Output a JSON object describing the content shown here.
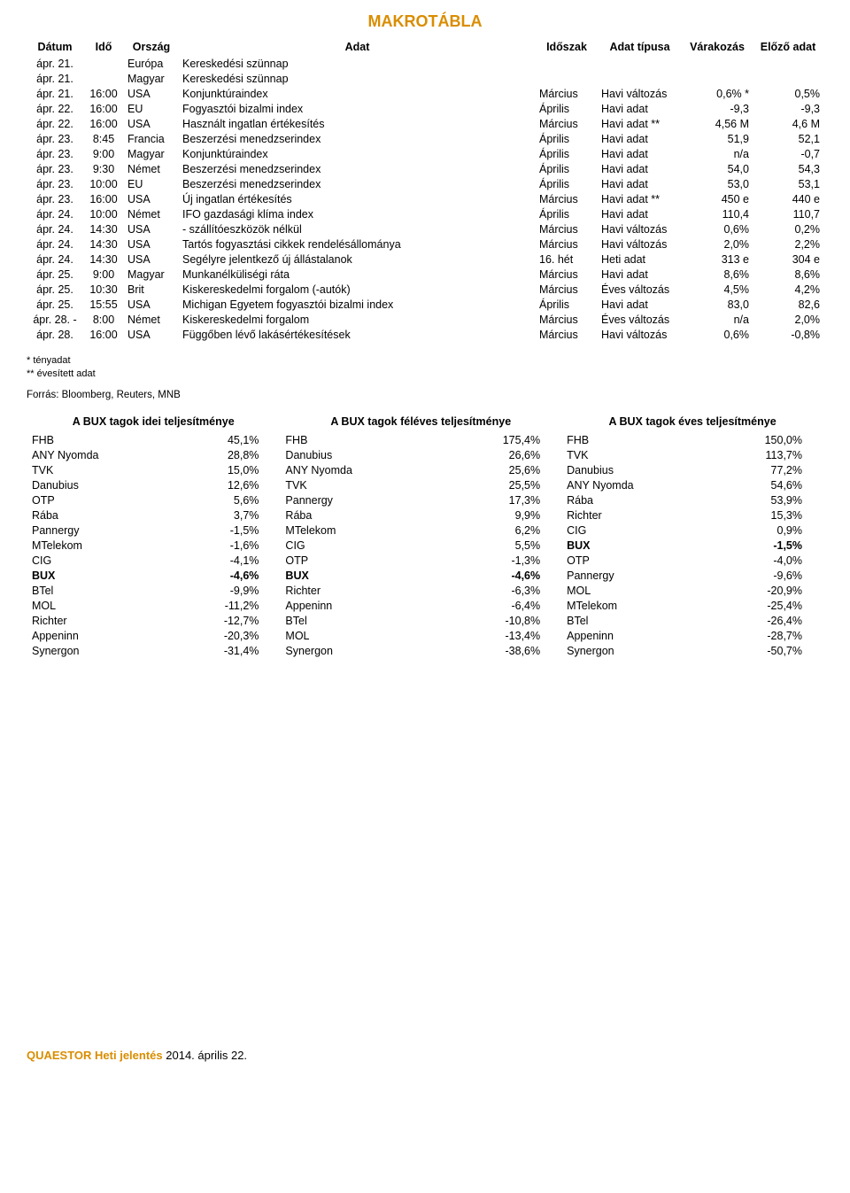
{
  "title": "MAKROTÁBLA",
  "title_color": "#d98d00",
  "columns": [
    "Dátum",
    "Idő",
    "Ország",
    "Adat",
    "Időszak",
    "Adat típusa",
    "Várakozás",
    "Előző adat"
  ],
  "rows": [
    {
      "datum": "ápr. 21.",
      "ido": "",
      "orszag": "Európa",
      "adat": "Kereskedési szünnap",
      "idoszak": "",
      "tipus": "",
      "var": "",
      "elozo": ""
    },
    {
      "datum": "ápr. 21.",
      "ido": "",
      "orszag": "Magyar",
      "adat": "Kereskedési szünnap",
      "idoszak": "",
      "tipus": "",
      "var": "",
      "elozo": ""
    },
    {
      "datum": "ápr. 21.",
      "ido": "16:00",
      "orszag": "USA",
      "adat": "Konjunktúraindex",
      "idoszak": "Március",
      "tipus": "Havi változás",
      "var": "0,6% *",
      "elozo": "0,5%"
    },
    {
      "datum": "ápr. 22.",
      "ido": "16:00",
      "orszag": "EU",
      "adat": "Fogyasztói bizalmi index",
      "idoszak": "Április",
      "tipus": "Havi adat",
      "var": "-9,3",
      "elozo": "-9,3"
    },
    {
      "datum": "ápr. 22.",
      "ido": "16:00",
      "orszag": "USA",
      "adat": "Használt ingatlan értékesítés",
      "idoszak": "Március",
      "tipus": "Havi adat **",
      "var": "4,56 M",
      "elozo": "4,6 M"
    },
    {
      "datum": "ápr. 23.",
      "ido": "8:45",
      "orszag": "Francia",
      "adat": "Beszerzési menedzserindex",
      "idoszak": "Április",
      "tipus": "Havi adat",
      "var": "51,9",
      "elozo": "52,1"
    },
    {
      "datum": "ápr. 23.",
      "ido": "9:00",
      "orszag": "Magyar",
      "adat": "Konjunktúraindex",
      "idoszak": "Április",
      "tipus": "Havi adat",
      "var": "n/a",
      "elozo": "-0,7"
    },
    {
      "datum": "ápr. 23.",
      "ido": "9:30",
      "orszag": "Német",
      "adat": "Beszerzési menedzserindex",
      "idoszak": "Április",
      "tipus": "Havi adat",
      "var": "54,0",
      "elozo": "54,3"
    },
    {
      "datum": "ápr. 23.",
      "ido": "10:00",
      "orszag": "EU",
      "adat": "Beszerzési menedzserindex",
      "idoszak": "Április",
      "tipus": "Havi adat",
      "var": "53,0",
      "elozo": "53,1"
    },
    {
      "datum": "ápr. 23.",
      "ido": "16:00",
      "orszag": "USA",
      "adat": "Új ingatlan értékesítés",
      "idoszak": "Március",
      "tipus": "Havi adat **",
      "var": "450 e",
      "elozo": "440 e"
    },
    {
      "datum": "ápr. 24.",
      "ido": "10:00",
      "orszag": "Német",
      "adat": "IFO gazdasági klíma index",
      "idoszak": "Április",
      "tipus": "Havi adat",
      "var": "110,4",
      "elozo": "110,7"
    },
    {
      "datum": "ápr. 24.",
      "ido": "14:30",
      "orszag": "USA",
      "adat": " - szállítóeszközök nélkül",
      "idoszak": "Március",
      "tipus": "Havi változás",
      "var": "0,6%",
      "elozo": "0,2%"
    },
    {
      "datum": "ápr. 24.",
      "ido": "14:30",
      "orszag": "USA",
      "adat": "Tartós fogyasztási cikkek rendelésállománya",
      "idoszak": "Március",
      "tipus": "Havi változás",
      "var": "2,0%",
      "elozo": "2,2%"
    },
    {
      "datum": "ápr. 24.",
      "ido": "14:30",
      "orszag": "USA",
      "adat": "Segélyre jelentkező új állástalanok",
      "idoszak": "16. hét",
      "tipus": "Heti adat",
      "var": "313 e",
      "elozo": "304 e"
    },
    {
      "datum": "ápr. 25.",
      "ido": "9:00",
      "orszag": "Magyar",
      "adat": "Munkanélküliségi ráta",
      "idoszak": "Március",
      "tipus": "Havi adat",
      "var": "8,6%",
      "elozo": "8,6%"
    },
    {
      "datum": "ápr. 25.",
      "ido": "10:30",
      "orszag": "Brit",
      "adat": "Kiskereskedelmi forgalom (-autók)",
      "idoszak": "Március",
      "tipus": "Éves változás",
      "var": "4,5%",
      "elozo": "4,2%"
    },
    {
      "datum": "ápr. 25.",
      "ido": "15:55",
      "orszag": "USA",
      "adat": "Michigan Egyetem fogyasztói bizalmi index",
      "idoszak": "Április",
      "tipus": "Havi adat",
      "var": "83,0",
      "elozo": "82,6"
    },
    {
      "datum": "ápr. 28. -",
      "ido": "8:00",
      "orszag": "Német",
      "adat": "Kiskereskedelmi forgalom",
      "idoszak": "Március",
      "tipus": "Éves változás",
      "var": "n/a",
      "elozo": "2,0%"
    },
    {
      "datum": "ápr. 28.",
      "ido": "16:00",
      "orszag": "USA",
      "adat": "Függőben lévő lakásértékesítések",
      "idoszak": "Március",
      "tipus": "Havi változás",
      "var": "0,6%",
      "elozo": "-0,8%"
    }
  ],
  "note1": "* tényadat",
  "note2": "** évesített adat",
  "source": "Forrás: Bloomberg, Reuters, MNB",
  "perf_headers": [
    "A BUX tagok idei teljesítménye",
    "A BUX tagok féléves teljesítménye",
    "A BUX tagok éves teljesítménye"
  ],
  "perf": [
    [
      {
        "name": "FHB",
        "val": "45,1%"
      },
      {
        "name": "ANY Nyomda",
        "val": "28,8%"
      },
      {
        "name": "TVK",
        "val": "15,0%"
      },
      {
        "name": "Danubius",
        "val": "12,6%"
      },
      {
        "name": "OTP",
        "val": "5,6%"
      },
      {
        "name": "Rába",
        "val": "3,7%"
      },
      {
        "name": "Pannergy",
        "val": "-1,5%"
      },
      {
        "name": "MTelekom",
        "val": "-1,6%"
      },
      {
        "name": "CIG",
        "val": "-4,1%"
      },
      {
        "name": "BUX",
        "val": "-4,6%",
        "bold": true
      },
      {
        "name": "BTel",
        "val": "-9,9%"
      },
      {
        "name": "MOL",
        "val": "-11,2%"
      },
      {
        "name": "Richter",
        "val": "-12,7%"
      },
      {
        "name": "Appeninn",
        "val": "-20,3%"
      },
      {
        "name": "Synergon",
        "val": "-31,4%"
      }
    ],
    [
      {
        "name": "FHB",
        "val": "175,4%"
      },
      {
        "name": "Danubius",
        "val": "26,6%"
      },
      {
        "name": "ANY Nyomda",
        "val": "25,6%"
      },
      {
        "name": "TVK",
        "val": "25,5%"
      },
      {
        "name": "Pannergy",
        "val": "17,3%"
      },
      {
        "name": "Rába",
        "val": "9,9%"
      },
      {
        "name": "MTelekom",
        "val": "6,2%"
      },
      {
        "name": "CIG",
        "val": "5,5%"
      },
      {
        "name": "OTP",
        "val": "-1,3%"
      },
      {
        "name": "BUX",
        "val": "-4,6%",
        "bold": true
      },
      {
        "name": "Richter",
        "val": "-6,3%"
      },
      {
        "name": "Appeninn",
        "val": "-6,4%"
      },
      {
        "name": "BTel",
        "val": "-10,8%"
      },
      {
        "name": "MOL",
        "val": "-13,4%"
      },
      {
        "name": "Synergon",
        "val": "-38,6%"
      }
    ],
    [
      {
        "name": "FHB",
        "val": "150,0%"
      },
      {
        "name": "TVK",
        "val": "113,7%"
      },
      {
        "name": "Danubius",
        "val": "77,2%"
      },
      {
        "name": "ANY Nyomda",
        "val": "54,6%"
      },
      {
        "name": "Rába",
        "val": "53,9%"
      },
      {
        "name": "Richter",
        "val": "15,3%"
      },
      {
        "name": "CIG",
        "val": "0,9%"
      },
      {
        "name": "BUX",
        "val": "-1,5%",
        "bold": true
      },
      {
        "name": "OTP",
        "val": "-4,0%"
      },
      {
        "name": "Pannergy",
        "val": "-9,6%"
      },
      {
        "name": "MOL",
        "val": "-20,9%"
      },
      {
        "name": "MTelekom",
        "val": "-25,4%"
      },
      {
        "name": "BTel",
        "val": "-26,4%"
      },
      {
        "name": "Appeninn",
        "val": "-28,7%"
      },
      {
        "name": "Synergon",
        "val": "-50,7%"
      }
    ]
  ],
  "footer_brand": "QUAESTOR Heti jelentés",
  "footer_brand_color": "#d98d00",
  "footer_date": " 2014. április 22."
}
